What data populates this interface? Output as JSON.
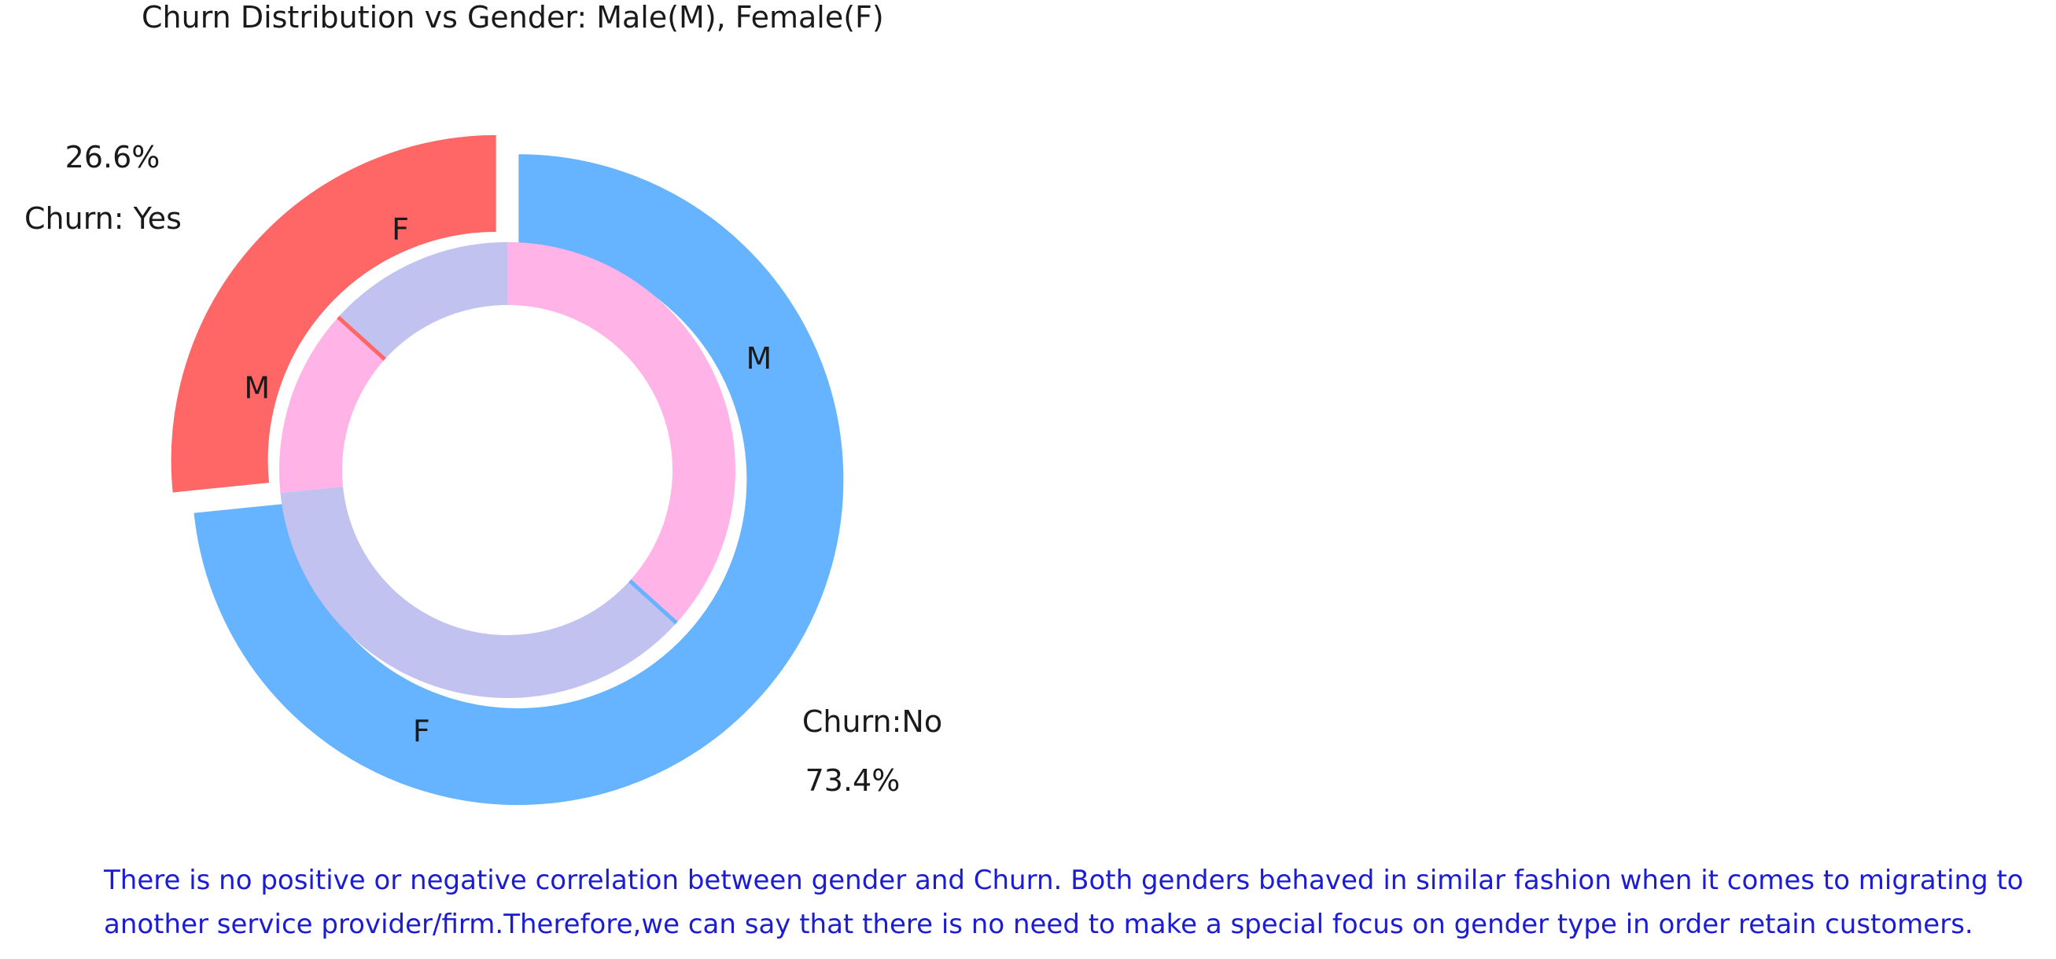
{
  "chart_data": {
    "type": "pie",
    "title": "Churn Distribution vs Gender: Male(M), Female(F)",
    "outer_ring": {
      "slices": [
        {
          "name": "Churn: Yes",
          "value": 26.6,
          "label": "Churn: Yes",
          "pct_label": "26.6%",
          "color": "#ff6666"
        },
        {
          "name": "Churn:No",
          "value": 73.4,
          "label": "Churn:No",
          "pct_label": "73.4%",
          "color": "#66b3ff"
        }
      ]
    },
    "inner_ring": {
      "slices": [
        {
          "label": "F",
          "value": 13.3,
          "group": "Churn: Yes",
          "color": "#c2c2f0"
        },
        {
          "label": "M",
          "value": 13.3,
          "group": "Churn: Yes",
          "color": "#ffb3e6"
        },
        {
          "label": "F",
          "value": 36.7,
          "group": "Churn:No",
          "color": "#c2c2f0"
        },
        {
          "label": "M",
          "value": 36.7,
          "group": "Churn:No",
          "color": "#ffb3e6"
        }
      ]
    },
    "start_angle_deg": 90,
    "direction": "counterclockwise",
    "explode_outer": true
  },
  "note": {
    "text": "There is no positive or negative correlation between gender and Churn. Both genders behaved in similar fashion when it comes to migrating to another service provider/firm.Therefore,we can say that there is no need to make a special focus on gender type in order retain customers."
  }
}
